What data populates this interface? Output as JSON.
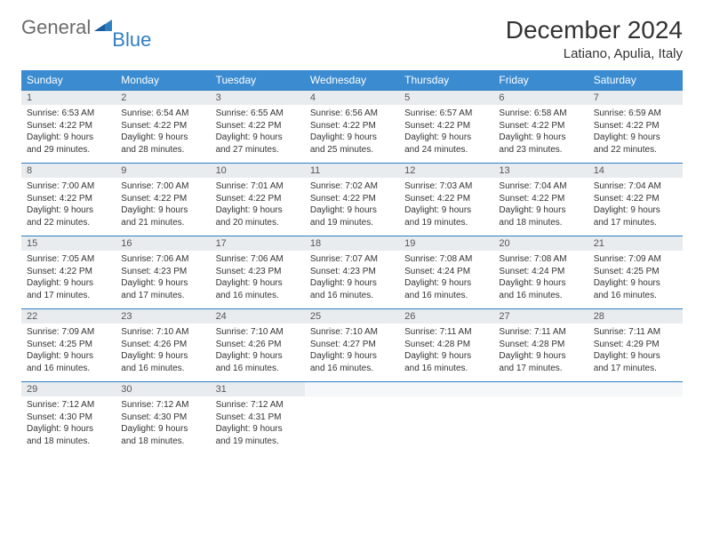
{
  "logo": {
    "text1": "General",
    "text2": "Blue"
  },
  "title": "December 2024",
  "location": "Latiano, Apulia, Italy",
  "colors": {
    "header_bg": "#3a8bd0",
    "header_text": "#ffffff",
    "daynum_bg": "#e9ecef",
    "border": "#2f7fc3",
    "logo_gray": "#6b6b6b",
    "logo_blue": "#2f7fc3"
  },
  "day_headers": [
    "Sunday",
    "Monday",
    "Tuesday",
    "Wednesday",
    "Thursday",
    "Friday",
    "Saturday"
  ],
  "weeks": [
    [
      {
        "n": "1",
        "sr": "Sunrise: 6:53 AM",
        "ss": "Sunset: 4:22 PM",
        "d1": "Daylight: 9 hours",
        "d2": "and 29 minutes."
      },
      {
        "n": "2",
        "sr": "Sunrise: 6:54 AM",
        "ss": "Sunset: 4:22 PM",
        "d1": "Daylight: 9 hours",
        "d2": "and 28 minutes."
      },
      {
        "n": "3",
        "sr": "Sunrise: 6:55 AM",
        "ss": "Sunset: 4:22 PM",
        "d1": "Daylight: 9 hours",
        "d2": "and 27 minutes."
      },
      {
        "n": "4",
        "sr": "Sunrise: 6:56 AM",
        "ss": "Sunset: 4:22 PM",
        "d1": "Daylight: 9 hours",
        "d2": "and 25 minutes."
      },
      {
        "n": "5",
        "sr": "Sunrise: 6:57 AM",
        "ss": "Sunset: 4:22 PM",
        "d1": "Daylight: 9 hours",
        "d2": "and 24 minutes."
      },
      {
        "n": "6",
        "sr": "Sunrise: 6:58 AM",
        "ss": "Sunset: 4:22 PM",
        "d1": "Daylight: 9 hours",
        "d2": "and 23 minutes."
      },
      {
        "n": "7",
        "sr": "Sunrise: 6:59 AM",
        "ss": "Sunset: 4:22 PM",
        "d1": "Daylight: 9 hours",
        "d2": "and 22 minutes."
      }
    ],
    [
      {
        "n": "8",
        "sr": "Sunrise: 7:00 AM",
        "ss": "Sunset: 4:22 PM",
        "d1": "Daylight: 9 hours",
        "d2": "and 22 minutes."
      },
      {
        "n": "9",
        "sr": "Sunrise: 7:00 AM",
        "ss": "Sunset: 4:22 PM",
        "d1": "Daylight: 9 hours",
        "d2": "and 21 minutes."
      },
      {
        "n": "10",
        "sr": "Sunrise: 7:01 AM",
        "ss": "Sunset: 4:22 PM",
        "d1": "Daylight: 9 hours",
        "d2": "and 20 minutes."
      },
      {
        "n": "11",
        "sr": "Sunrise: 7:02 AM",
        "ss": "Sunset: 4:22 PM",
        "d1": "Daylight: 9 hours",
        "d2": "and 19 minutes."
      },
      {
        "n": "12",
        "sr": "Sunrise: 7:03 AM",
        "ss": "Sunset: 4:22 PM",
        "d1": "Daylight: 9 hours",
        "d2": "and 19 minutes."
      },
      {
        "n": "13",
        "sr": "Sunrise: 7:04 AM",
        "ss": "Sunset: 4:22 PM",
        "d1": "Daylight: 9 hours",
        "d2": "and 18 minutes."
      },
      {
        "n": "14",
        "sr": "Sunrise: 7:04 AM",
        "ss": "Sunset: 4:22 PM",
        "d1": "Daylight: 9 hours",
        "d2": "and 17 minutes."
      }
    ],
    [
      {
        "n": "15",
        "sr": "Sunrise: 7:05 AM",
        "ss": "Sunset: 4:22 PM",
        "d1": "Daylight: 9 hours",
        "d2": "and 17 minutes."
      },
      {
        "n": "16",
        "sr": "Sunrise: 7:06 AM",
        "ss": "Sunset: 4:23 PM",
        "d1": "Daylight: 9 hours",
        "d2": "and 17 minutes."
      },
      {
        "n": "17",
        "sr": "Sunrise: 7:06 AM",
        "ss": "Sunset: 4:23 PM",
        "d1": "Daylight: 9 hours",
        "d2": "and 16 minutes."
      },
      {
        "n": "18",
        "sr": "Sunrise: 7:07 AM",
        "ss": "Sunset: 4:23 PM",
        "d1": "Daylight: 9 hours",
        "d2": "and 16 minutes."
      },
      {
        "n": "19",
        "sr": "Sunrise: 7:08 AM",
        "ss": "Sunset: 4:24 PM",
        "d1": "Daylight: 9 hours",
        "d2": "and 16 minutes."
      },
      {
        "n": "20",
        "sr": "Sunrise: 7:08 AM",
        "ss": "Sunset: 4:24 PM",
        "d1": "Daylight: 9 hours",
        "d2": "and 16 minutes."
      },
      {
        "n": "21",
        "sr": "Sunrise: 7:09 AM",
        "ss": "Sunset: 4:25 PM",
        "d1": "Daylight: 9 hours",
        "d2": "and 16 minutes."
      }
    ],
    [
      {
        "n": "22",
        "sr": "Sunrise: 7:09 AM",
        "ss": "Sunset: 4:25 PM",
        "d1": "Daylight: 9 hours",
        "d2": "and 16 minutes."
      },
      {
        "n": "23",
        "sr": "Sunrise: 7:10 AM",
        "ss": "Sunset: 4:26 PM",
        "d1": "Daylight: 9 hours",
        "d2": "and 16 minutes."
      },
      {
        "n": "24",
        "sr": "Sunrise: 7:10 AM",
        "ss": "Sunset: 4:26 PM",
        "d1": "Daylight: 9 hours",
        "d2": "and 16 minutes."
      },
      {
        "n": "25",
        "sr": "Sunrise: 7:10 AM",
        "ss": "Sunset: 4:27 PM",
        "d1": "Daylight: 9 hours",
        "d2": "and 16 minutes."
      },
      {
        "n": "26",
        "sr": "Sunrise: 7:11 AM",
        "ss": "Sunset: 4:28 PM",
        "d1": "Daylight: 9 hours",
        "d2": "and 16 minutes."
      },
      {
        "n": "27",
        "sr": "Sunrise: 7:11 AM",
        "ss": "Sunset: 4:28 PM",
        "d1": "Daylight: 9 hours",
        "d2": "and 17 minutes."
      },
      {
        "n": "28",
        "sr": "Sunrise: 7:11 AM",
        "ss": "Sunset: 4:29 PM",
        "d1": "Daylight: 9 hours",
        "d2": "and 17 minutes."
      }
    ],
    [
      {
        "n": "29",
        "sr": "Sunrise: 7:12 AM",
        "ss": "Sunset: 4:30 PM",
        "d1": "Daylight: 9 hours",
        "d2": "and 18 minutes."
      },
      {
        "n": "30",
        "sr": "Sunrise: 7:12 AM",
        "ss": "Sunset: 4:30 PM",
        "d1": "Daylight: 9 hours",
        "d2": "and 18 minutes."
      },
      {
        "n": "31",
        "sr": "Sunrise: 7:12 AM",
        "ss": "Sunset: 4:31 PM",
        "d1": "Daylight: 9 hours",
        "d2": "and 19 minutes."
      },
      null,
      null,
      null,
      null
    ]
  ]
}
